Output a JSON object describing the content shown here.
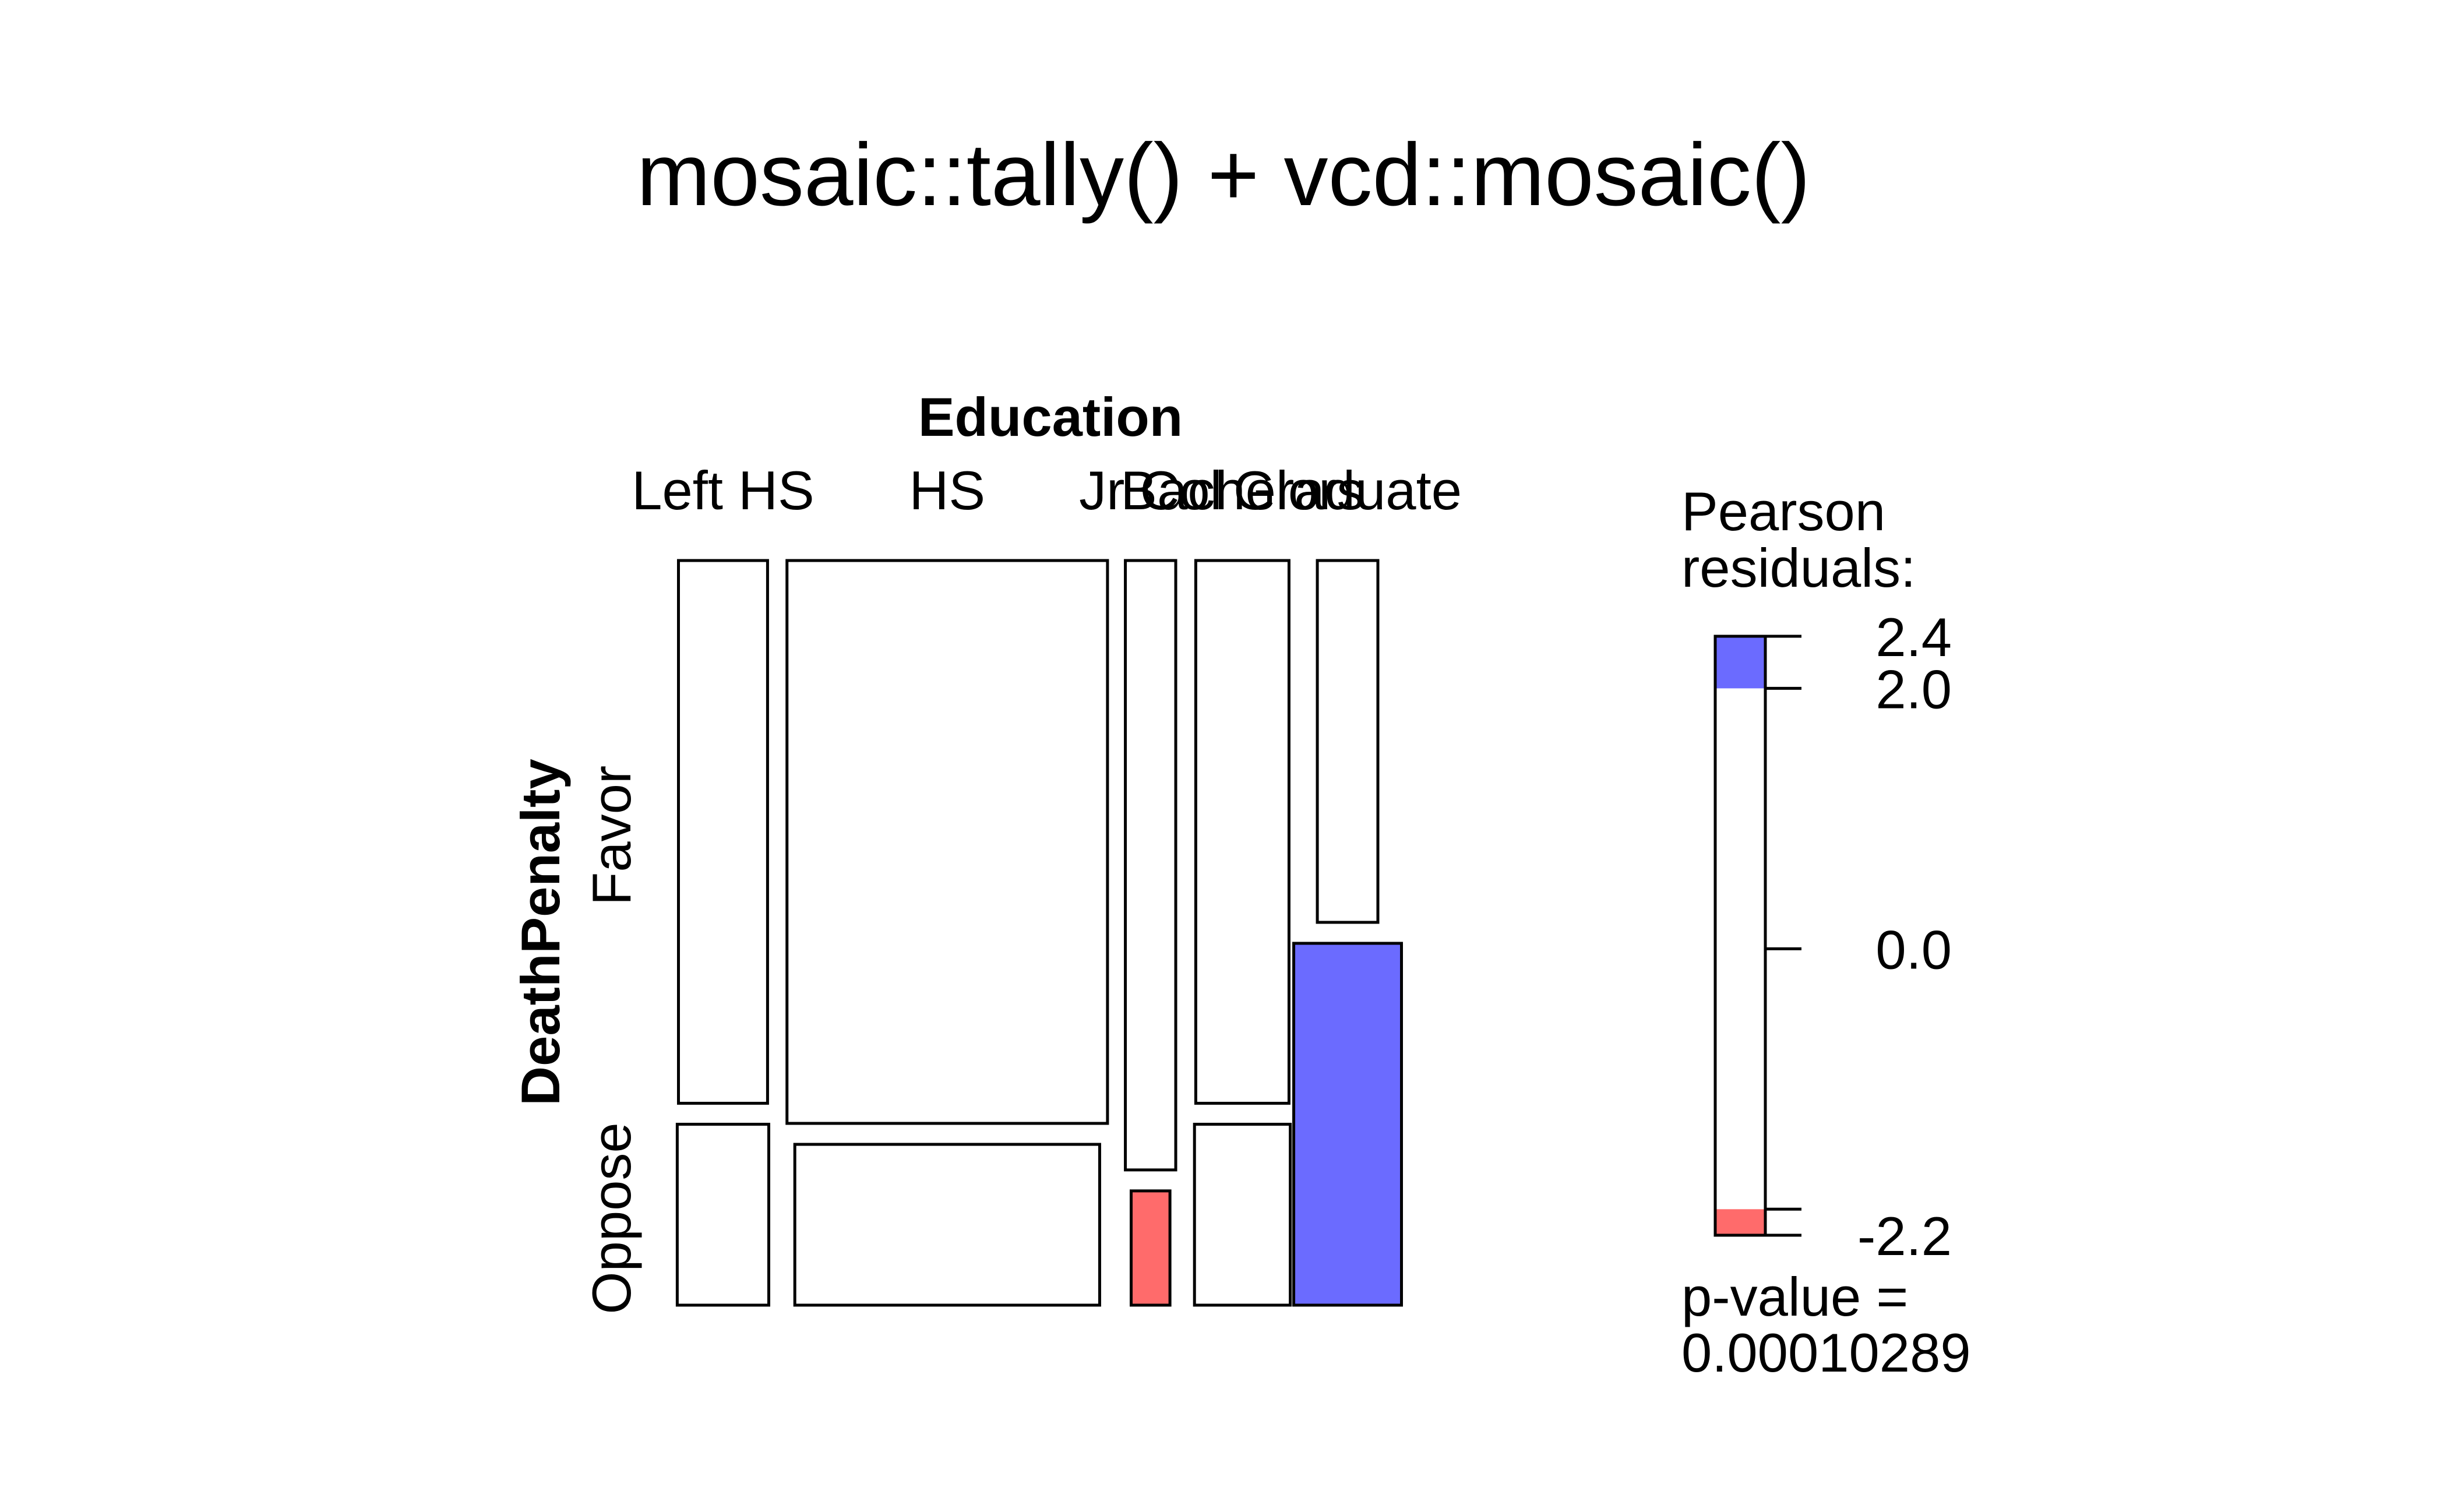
{
  "chart_data": {
    "type": "mosaic",
    "title": "mosaic::tally() + vcd::mosaic()",
    "column_variable": "Education",
    "row_variable": "DeathPenalty",
    "column_levels": [
      "Left HS",
      "HS",
      "Jr Col",
      "Bachelors",
      "Graduate"
    ],
    "row_levels": [
      "Favor",
      "Oppose"
    ],
    "column_proportions": [
      0.1355,
      0.4787,
      0.0723,
      0.1418,
      0.1128
    ],
    "favor_share_by_column": [
      0.75,
      0.7778,
      0.8421,
      0.75,
      0.5
    ],
    "residual_shading_by_column": [
      [
        "none",
        "none"
      ],
      [
        "none",
        "none"
      ],
      [
        "none",
        "negative"
      ],
      [
        "none",
        "none"
      ],
      [
        "none",
        "positive"
      ]
    ],
    "legend": {
      "title_line1": "Pearson",
      "title_line2": "residuals:",
      "scale_min": -2.2,
      "scale_max": 2.4,
      "ticks": [
        {
          "value": 2.4,
          "label": "2.4"
        },
        {
          "value": 2.0,
          "label": "2.0"
        },
        {
          "value": 0.0,
          "label": "0.0"
        },
        {
          "value": -2.2,
          "label": "-2.2"
        }
      ],
      "positive_threshold": 2.0,
      "negative_threshold": -2.0,
      "pvalue_line1": "p-value =",
      "pvalue_line2": "0.00010289"
    },
    "colors": {
      "positive": "#6b6bff",
      "negative": "#ff6b6b",
      "none": "#ffffff",
      "stroke": "#000000"
    }
  }
}
